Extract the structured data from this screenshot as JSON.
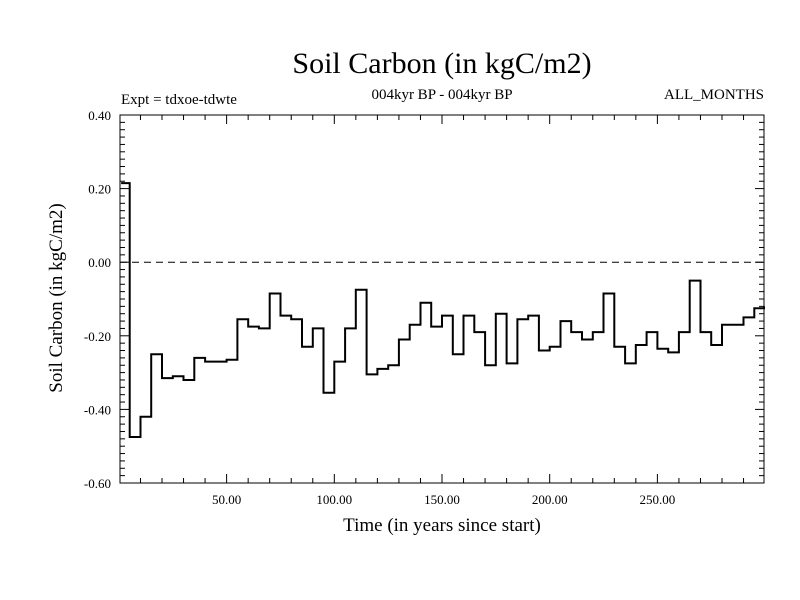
{
  "chart_data": {
    "type": "line",
    "step": true,
    "title": "Soil Carbon (in kgC/m2)",
    "subtitle": "004kyr BP - 004kyr BP",
    "left_note": "Expt = tdxoe-tdwte",
    "right_note": "ALL_MONTHS",
    "xlabel": "Time (in years since start)",
    "ylabel": "Soil Carbon (in kgC/m2)",
    "xlim": [
      0.5,
      299.5
    ],
    "ylim": [
      -0.6,
      0.4
    ],
    "x_ticks": [
      50,
      100,
      150,
      200,
      250
    ],
    "x_tick_labels": [
      "50.00",
      "100.00",
      "150.00",
      "200.00",
      "250.00"
    ],
    "y_ticks": [
      -0.6,
      -0.4,
      -0.2,
      0.0,
      0.2,
      0.4
    ],
    "y_tick_labels": [
      "-0.60",
      "-0.40",
      "-0.20",
      "0.00",
      "0.20",
      "0.40"
    ],
    "zero_line": "dashed",
    "series": [
      {
        "x": [
          1,
          5,
          10,
          15,
          20,
          25,
          30,
          35,
          40,
          45,
          50,
          55,
          60,
          65,
          70,
          75,
          80,
          85,
          90,
          95,
          100,
          105,
          110,
          115,
          120,
          125,
          130,
          135,
          140,
          145,
          150,
          155,
          160,
          165,
          170,
          175,
          180,
          185,
          190,
          195,
          200,
          205,
          210,
          215,
          220,
          225,
          230,
          235,
          240,
          245,
          250,
          255,
          260,
          265,
          270,
          275,
          280,
          285,
          290,
          295,
          300
        ],
        "y": [
          0.215,
          -0.475,
          -0.42,
          -0.25,
          -0.315,
          -0.31,
          -0.32,
          -0.26,
          -0.27,
          -0.27,
          -0.265,
          -0.155,
          -0.175,
          -0.18,
          -0.085,
          -0.145,
          -0.155,
          -0.23,
          -0.18,
          -0.355,
          -0.27,
          -0.18,
          -0.075,
          -0.305,
          -0.29,
          -0.28,
          -0.21,
          -0.17,
          -0.11,
          -0.175,
          -0.145,
          -0.25,
          -0.145,
          -0.19,
          -0.28,
          -0.14,
          -0.275,
          -0.155,
          -0.145,
          -0.24,
          -0.23,
          -0.16,
          -0.19,
          -0.21,
          -0.19,
          -0.085,
          -0.23,
          -0.275,
          -0.225,
          -0.19,
          -0.235,
          -0.245,
          -0.19,
          -0.05,
          -0.19,
          -0.225,
          -0.17,
          -0.17,
          -0.15,
          -0.125,
          -0.12
        ]
      }
    ]
  }
}
